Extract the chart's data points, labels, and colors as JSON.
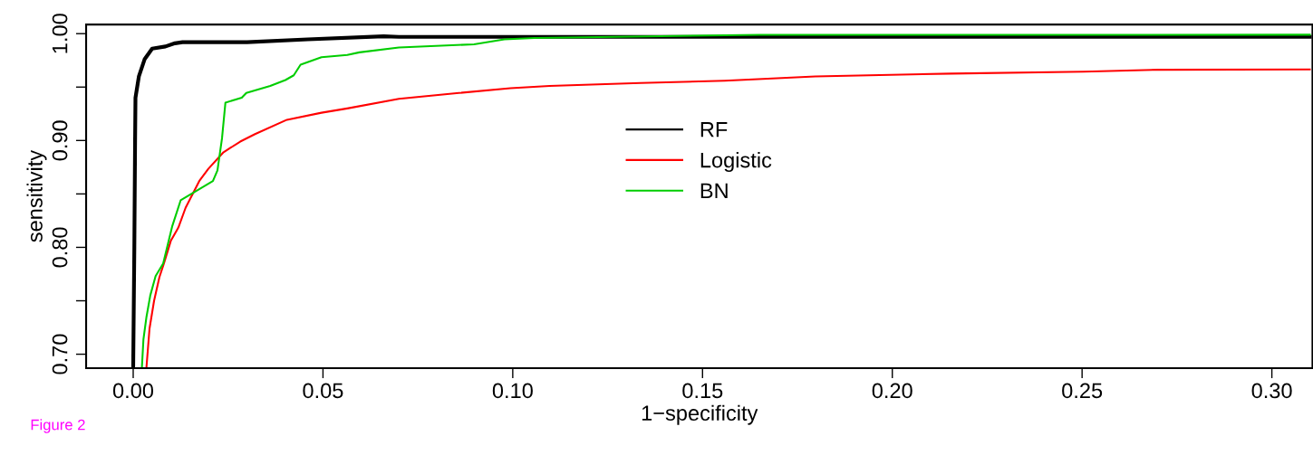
{
  "chart_data": {
    "type": "line",
    "xlabel": "1−specificity",
    "ylabel": "sensitivity",
    "xlim": [
      -0.0124,
      0.3107
    ],
    "ylim": [
      0.687,
      1.0085
    ],
    "xticks": [
      {
        "value": 0,
        "label": "0.00"
      },
      {
        "value": 0.05,
        "label": "0.05"
      },
      {
        "value": 0.1,
        "label": "0.10"
      },
      {
        "value": 0.15,
        "label": "0.15"
      },
      {
        "value": 0.2,
        "label": "0.20"
      },
      {
        "value": 0.25,
        "label": "0.25"
      },
      {
        "value": 0.3,
        "label": "0.30"
      }
    ],
    "yticks": [
      {
        "value": 0.7,
        "label": "0.70"
      },
      {
        "value": 0.75,
        "label": null
      },
      {
        "value": 0.8,
        "label": "0.80"
      },
      {
        "value": 0.85,
        "label": null
      },
      {
        "value": 0.9,
        "label": "0.90"
      },
      {
        "value": 0.95,
        "label": null
      },
      {
        "value": 1.0,
        "label": "1.00"
      }
    ],
    "grid": false,
    "legend": "center",
    "line_style": "solid",
    "annotations": [
      "Figure 2"
    ],
    "series": [
      {
        "name": "RF",
        "color": "#000000",
        "x": [
          0.0,
          0.0003,
          0.0005,
          0.0006,
          0.0015,
          0.003,
          0.005,
          0.0085,
          0.011,
          0.013,
          0.03,
          0.046,
          0.066,
          0.07,
          0.31
        ],
        "values": [
          0.688,
          0.8,
          0.9,
          0.94,
          0.96,
          0.976,
          0.986,
          0.988,
          0.991,
          0.992,
          0.992,
          0.9947,
          0.9975,
          0.997,
          0.997
        ]
      },
      {
        "name": "Logistic",
        "color": "#ff0000",
        "x": [
          0.0035,
          0.0043,
          0.0055,
          0.0069,
          0.0081,
          0.0099,
          0.0119,
          0.0138,
          0.0174,
          0.0198,
          0.0238,
          0.0282,
          0.0321,
          0.0405,
          0.0496,
          0.0564,
          0.07,
          0.0858,
          0.0994,
          0.1097,
          0.1336,
          0.1558,
          0.1797,
          0.2155,
          0.2503,
          0.27,
          0.31
        ],
        "values": [
          0.688,
          0.724,
          0.75,
          0.772,
          0.785,
          0.806,
          0.8185,
          0.837,
          0.862,
          0.8735,
          0.889,
          0.899,
          0.906,
          0.9194,
          0.926,
          0.93,
          0.939,
          0.9445,
          0.949,
          0.951,
          0.9538,
          0.956,
          0.96,
          0.9626,
          0.9644,
          0.9662,
          0.9665
        ]
      },
      {
        "name": "BN",
        "color": "#00cd00",
        "x": [
          0.0023,
          0.0027,
          0.0035,
          0.0045,
          0.0059,
          0.0079,
          0.0103,
          0.0125,
          0.021,
          0.0222,
          0.0234,
          0.0243,
          0.0286,
          0.0298,
          0.0361,
          0.0401,
          0.0423,
          0.0441,
          0.0496,
          0.0564,
          0.0596,
          0.07,
          0.0898,
          0.0978,
          0.1057,
          0.165,
          0.31
        ],
        "values": [
          0.688,
          0.714,
          0.735,
          0.755,
          0.773,
          0.785,
          0.82,
          0.844,
          0.862,
          0.872,
          0.902,
          0.9355,
          0.94,
          0.9445,
          0.951,
          0.9566,
          0.961,
          0.971,
          0.978,
          0.98,
          0.9825,
          0.987,
          0.99,
          0.9947,
          0.996,
          0.9989,
          0.999
        ]
      }
    ]
  }
}
